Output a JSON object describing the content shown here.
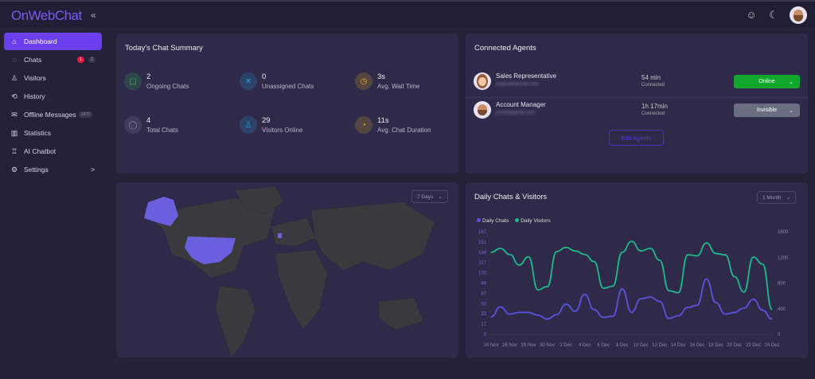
{
  "app": {
    "logo": "OnWebChat",
    "collapse_icon": "double-chevron-left"
  },
  "topbar": {
    "icons": [
      "ai-bot-icon",
      "theme-toggle-icon",
      "user-avatar"
    ]
  },
  "sidebar": {
    "items": [
      {
        "label": "Dashboard",
        "icon": "home-icon",
        "active": true
      },
      {
        "label": "Chats",
        "icon": "chat-icon",
        "badge_red": "1",
        "badge_gray": "3"
      },
      {
        "label": "Visitors",
        "icon": "users-icon"
      },
      {
        "label": "History",
        "icon": "history-icon"
      },
      {
        "label": "Offline Messages",
        "icon": "mail-icon",
        "badge_gray": "2476"
      },
      {
        "label": "Statistics",
        "icon": "bar-chart-icon"
      },
      {
        "label": "AI Chatbot",
        "icon": "robot-icon"
      },
      {
        "label": "Settings",
        "icon": "gear-icon",
        "chevron": ">"
      }
    ]
  },
  "summary": {
    "title": "Today's Chat Summary",
    "stats": [
      {
        "value": "2",
        "label": "Ongoing Chats",
        "color": "#2fbf4a"
      },
      {
        "value": "0",
        "label": "Unassigned Chats",
        "color": "#2aa6e8"
      },
      {
        "value": "3s",
        "label": "Avg. Wait Time",
        "color": "#f2b21c"
      },
      {
        "value": "4",
        "label": "Total Chats",
        "color": "#8a86a0"
      },
      {
        "value": "29",
        "label": "Visitors Online",
        "color": "#2aa6e8"
      },
      {
        "value": "11s",
        "label": "Avg. Chat Duration",
        "color": "#f2b21c"
      }
    ]
  },
  "agents": {
    "title": "Connected Agents",
    "list": [
      {
        "name": "Sales Representative",
        "email": "ali@onwebchat.com",
        "duration": "54 min",
        "connected": "Connected",
        "status": "Online",
        "status_color": "#10a82a"
      },
      {
        "name": "Account Manager",
        "email": "jsmith@gmail.com",
        "duration": "1h 17min",
        "connected": "Connected",
        "status": "Invisible",
        "status_color": "#6b6d83"
      }
    ],
    "edit_label": "Edit Agents"
  },
  "map": {
    "range": "7 Days",
    "highlight_color": "#6a5fdc"
  },
  "chart": {
    "title": "Daily Chats & Visitors",
    "range": "1 Month"
  },
  "chart_data": {
    "type": "line",
    "title": "Daily Chats & Visitors",
    "x": [
      "24 Nov",
      "25 Nov",
      "26 Nov",
      "27 Nov",
      "28 Nov",
      "29 Nov",
      "30 Nov",
      "1 Dec",
      "2 Dec",
      "3 Dec",
      "4 Dec",
      "5 Dec",
      "6 Dec",
      "7 Dec",
      "8 Dec",
      "9 Dec",
      "10 Dec",
      "11 Dec",
      "12 Dec",
      "13 Dec",
      "14 Dec",
      "15 Dec",
      "16 Dec",
      "17 Dec",
      "18 Dec",
      "19 Dec",
      "20 Dec",
      "21 Dec",
      "22 Dec",
      "23 Dec",
      "24 Dec"
    ],
    "x_tick_labels": [
      "24 Nov",
      "26 Nov",
      "28 Nov",
      "30 Nov",
      "2 Dec",
      "4 Dec",
      "6 Dec",
      "8 Dec",
      "10 Dec",
      "12 Dec",
      "14 Dec",
      "16 Dec",
      "18 Dec",
      "20 Dec",
      "22 Dec",
      "24 Dec"
    ],
    "y_left_ticks": [
      "0",
      "17",
      "33",
      "50",
      "67",
      "84",
      "100",
      "117",
      "134",
      "151",
      "167"
    ],
    "y_left_range": [
      0,
      187
    ],
    "y_right_ticks": [
      "0",
      "400",
      "800",
      "1200",
      "1600"
    ],
    "y_right_range": [
      0,
      1600
    ],
    "legend_position": "top-left",
    "grid": false,
    "series": [
      {
        "name": "Daily Chats",
        "axis": "left",
        "color": "#5b52e0",
        "values": [
          32,
          50,
          37,
          40,
          40,
          35,
          28,
          36,
          55,
          42,
          73,
          45,
          31,
          33,
          83,
          40,
          65,
          68,
          60,
          29,
          34,
          49,
          53,
          101,
          58,
          37,
          40,
          48,
          64,
          44,
          28
        ]
      },
      {
        "name": "Daily Visitors",
        "axis": "right",
        "color": "#1fb98a",
        "values": [
          1280,
          1340,
          1245,
          1080,
          1210,
          695,
          745,
          1290,
          1355,
          1300,
          1245,
          1135,
          720,
          750,
          1280,
          1450,
          1300,
          1340,
          1155,
          680,
          650,
          1240,
          1225,
          1425,
          1260,
          1240,
          900,
          660,
          1205,
          1095,
          390
        ]
      }
    ]
  }
}
